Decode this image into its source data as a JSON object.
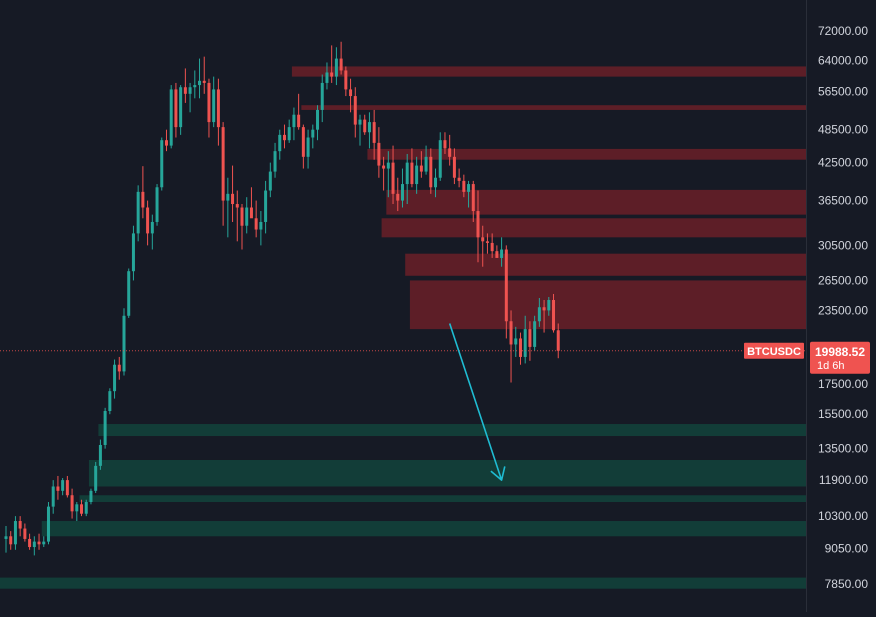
{
  "chart_data": {
    "type": "candlestick",
    "symbol": "BTCUSDC",
    "last_price": "19988.52",
    "countdown": "1d 6h",
    "scale": "log",
    "ylim": [
      7300,
      79000
    ],
    "grid": false,
    "y_ticks": [
      {
        "value": 72000,
        "label": "72000.00"
      },
      {
        "value": 64000,
        "label": "64000.00"
      },
      {
        "value": 56500,
        "label": "56500.00"
      },
      {
        "value": 48500,
        "label": "48500.00"
      },
      {
        "value": 42500,
        "label": "42500.00"
      },
      {
        "value": 36500,
        "label": "36500.00"
      },
      {
        "value": 30500,
        "label": "30500.00"
      },
      {
        "value": 26500,
        "label": "26500.00"
      },
      {
        "value": 23500,
        "label": "23500.00"
      },
      {
        "value": 17500,
        "label": "17500.00"
      },
      {
        "value": 15500,
        "label": "15500.00"
      },
      {
        "value": 13500,
        "label": "13500.00"
      },
      {
        "value": 11900,
        "label": "11900.00"
      },
      {
        "value": 10300,
        "label": "10300.00"
      },
      {
        "value": 9050,
        "label": "9050.00"
      },
      {
        "value": 7850,
        "label": "7850.00"
      }
    ],
    "candles": [
      [
        9400,
        9900,
        8900,
        9500
      ],
      [
        9500,
        9700,
        9000,
        9200
      ],
      [
        9200,
        10300,
        9000,
        10100
      ],
      [
        10100,
        10300,
        9500,
        9800
      ],
      [
        9800,
        10000,
        9300,
        9400
      ],
      [
        9400,
        9600,
        9000,
        9100
      ],
      [
        9100,
        9500,
        8800,
        9300
      ],
      [
        9300,
        9600,
        9000,
        9200
      ],
      [
        9200,
        9500,
        9100,
        9300
      ],
      [
        9300,
        10900,
        9200,
        10700
      ],
      [
        10700,
        11900,
        10400,
        11600
      ],
      [
        11600,
        12100,
        11000,
        11400
      ],
      [
        11400,
        12000,
        11200,
        11900
      ],
      [
        11900,
        12100,
        11100,
        11200
      ],
      [
        11200,
        11500,
        10200,
        10500
      ],
      [
        10500,
        10900,
        10100,
        10800
      ],
      [
        10800,
        11000,
        10300,
        10400
      ],
      [
        10400,
        11000,
        10300,
        10900
      ],
      [
        10900,
        11500,
        10800,
        11400
      ],
      [
        11400,
        12800,
        11300,
        12600
      ],
      [
        12600,
        14000,
        12400,
        13700
      ],
      [
        13700,
        15900,
        13500,
        15700
      ],
      [
        15700,
        17200,
        15500,
        17000
      ],
      [
        17000,
        19300,
        16500,
        18900
      ],
      [
        18900,
        19500,
        17800,
        18400
      ],
      [
        18400,
        23700,
        18100,
        23000
      ],
      [
        23000,
        27800,
        22800,
        27500
      ],
      [
        27500,
        33000,
        26500,
        32000
      ],
      [
        32000,
        38800,
        31000,
        37800
      ],
      [
        37800,
        41900,
        34000,
        35500
      ],
      [
        35500,
        36500,
        30500,
        32000
      ],
      [
        32000,
        34500,
        30000,
        33500
      ],
      [
        33500,
        39000,
        33000,
        38500
      ],
      [
        38500,
        47000,
        38000,
        46500
      ],
      [
        46500,
        48500,
        44500,
        45500
      ],
      [
        45500,
        58000,
        45000,
        57000
      ],
      [
        57000,
        58500,
        47000,
        49000
      ],
      [
        49000,
        58000,
        47500,
        57500
      ],
      [
        57500,
        62000,
        54000,
        56000
      ],
      [
        56000,
        58500,
        52000,
        57500
      ],
      [
        57500,
        61500,
        55000,
        58000
      ],
      [
        58000,
        64500,
        55000,
        59000
      ],
      [
        59000,
        65000,
        56000,
        58500
      ],
      [
        58500,
        59500,
        47000,
        50000
      ],
      [
        50000,
        60000,
        49000,
        57000
      ],
      [
        57000,
        59500,
        45500,
        49000
      ],
      [
        49000,
        50000,
        33000,
        36500
      ],
      [
        36500,
        40000,
        31500,
        37500
      ],
      [
        37500,
        42000,
        33500,
        36000
      ],
      [
        36000,
        38000,
        31000,
        35500
      ],
      [
        35500,
        36000,
        30000,
        33000
      ],
      [
        33000,
        37000,
        32000,
        35500
      ],
      [
        35500,
        38500,
        34500,
        34000
      ],
      [
        34000,
        36500,
        31500,
        32500
      ],
      [
        32500,
        35000,
        30500,
        33500
      ],
      [
        33500,
        39500,
        32000,
        38000
      ],
      [
        38000,
        42500,
        37000,
        41000
      ],
      [
        41000,
        46000,
        40000,
        44500
      ],
      [
        44500,
        48500,
        43000,
        47500
      ],
      [
        47500,
        49500,
        45000,
        46500
      ],
      [
        46500,
        50500,
        46000,
        49000
      ],
      [
        49000,
        53000,
        46500,
        51500
      ],
      [
        51500,
        56000,
        48500,
        49000
      ],
      [
        49000,
        49500,
        41500,
        43500
      ],
      [
        43500,
        48500,
        41500,
        47000
      ],
      [
        47000,
        49500,
        45000,
        48500
      ],
      [
        48500,
        53500,
        46500,
        52500
      ],
      [
        52500,
        60500,
        50000,
        58500
      ],
      [
        58500,
        63500,
        57000,
        61000
      ],
      [
        61000,
        68000,
        58500,
        60000
      ],
      [
        60000,
        67500,
        58000,
        64500
      ],
      [
        64500,
        69000,
        60500,
        61500
      ],
      [
        61500,
        62500,
        55500,
        57000
      ],
      [
        57000,
        59500,
        52000,
        55500
      ],
      [
        55500,
        57500,
        47000,
        49500
      ],
      [
        49500,
        51500,
        45500,
        50500
      ],
      [
        50500,
        51500,
        47500,
        48000
      ],
      [
        48000,
        52000,
        45000,
        50000
      ],
      [
        50000,
        52500,
        43000,
        46000
      ],
      [
        46000,
        49000,
        40000,
        42000
      ],
      [
        42000,
        43500,
        38000,
        41500
      ],
      [
        41500,
        44500,
        37000,
        42500
      ],
      [
        42500,
        45500,
        36000,
        37500
      ],
      [
        37500,
        40000,
        35000,
        36500
      ],
      [
        36500,
        41500,
        35500,
        39000
      ],
      [
        39000,
        44000,
        36000,
        42500
      ],
      [
        42500,
        45000,
        38500,
        39000
      ],
      [
        39000,
        43500,
        37500,
        42000
      ],
      [
        42000,
        44500,
        40000,
        41000
      ],
      [
        41000,
        45500,
        40500,
        43500
      ],
      [
        43500,
        45000,
        37500,
        38500
      ],
      [
        38500,
        41500,
        37000,
        40000
      ],
      [
        40000,
        48000,
        39500,
        46500
      ],
      [
        46500,
        48000,
        44000,
        45000
      ],
      [
        45000,
        47500,
        42000,
        43500
      ],
      [
        43500,
        45000,
        39000,
        40000
      ],
      [
        40000,
        41500,
        38500,
        39500
      ],
      [
        39500,
        40500,
        37000,
        37800
      ],
      [
        37800,
        39500,
        35500,
        39000
      ],
      [
        39000,
        39500,
        33500,
        35000
      ],
      [
        35000,
        38000,
        28500,
        31500
      ],
      [
        31500,
        33000,
        28000,
        31000
      ],
      [
        31000,
        32000,
        29500,
        30800
      ],
      [
        30800,
        32000,
        29000,
        29800
      ],
      [
        29800,
        30500,
        29500,
        29000
      ],
      [
        29000,
        31500,
        28000,
        30000
      ],
      [
        30000,
        30500,
        21000,
        22500
      ],
      [
        22500,
        23500,
        17600,
        20500
      ],
      [
        20500,
        22000,
        19500,
        21000
      ],
      [
        21000,
        21500,
        18900,
        19500
      ],
      [
        19500,
        23000,
        19000,
        21800
      ],
      [
        21800,
        22500,
        19200,
        20300
      ],
      [
        20300,
        23000,
        20000,
        22500
      ],
      [
        22500,
        24700,
        22000,
        23800
      ],
      [
        23800,
        24500,
        21500,
        23500
      ],
      [
        23500,
        24800,
        23000,
        24500
      ],
      [
        24500,
        25100,
        21500,
        21700
      ],
      [
        21700,
        22300,
        19400,
        19988
      ]
    ],
    "zones": [
      {
        "kind": "resistance",
        "low": 60000,
        "high": 62500,
        "start": 61
      },
      {
        "kind": "resistance",
        "low": 52500,
        "high": 53500,
        "start": 63
      },
      {
        "kind": "resistance",
        "low": 43000,
        "high": 44900,
        "start": 77
      },
      {
        "kind": "resistance",
        "low": 34500,
        "high": 38100,
        "start": 81
      },
      {
        "kind": "resistance",
        "low": 31500,
        "high": 34000,
        "start": 80
      },
      {
        "kind": "resistance",
        "low": 27000,
        "high": 29500,
        "start": 85
      },
      {
        "kind": "resistance",
        "low": 21800,
        "high": 26500,
        "start": 86
      },
      {
        "kind": "support",
        "low": 14200,
        "high": 14900,
        "start": 20
      },
      {
        "kind": "support",
        "low": 11600,
        "high": 12900,
        "start": 18
      },
      {
        "kind": "support",
        "low": 10900,
        "high": 11200,
        "start": 16
      },
      {
        "kind": "support",
        "low": 9500,
        "high": 10100,
        "start": 8
      },
      {
        "kind": "support",
        "low": 7700,
        "high": 8050,
        "start": 0
      }
    ],
    "arrow": {
      "from": {
        "bar": 94,
        "value": 22300
      },
      "to": {
        "bar": 105,
        "value": 11900
      }
    },
    "colors": {
      "background": "#161a25",
      "up": "#26a69a",
      "down": "#ef5350",
      "resistance_zone": "rgba(114,32,40,0.78)",
      "support_zone": "rgba(18,68,60,0.85)",
      "arrow": "#1fbcd2",
      "price_line": "#ef5350",
      "axis_text": "#d1d4dc",
      "axis_border": "#2a2e39",
      "badge": "#ef5350"
    }
  }
}
